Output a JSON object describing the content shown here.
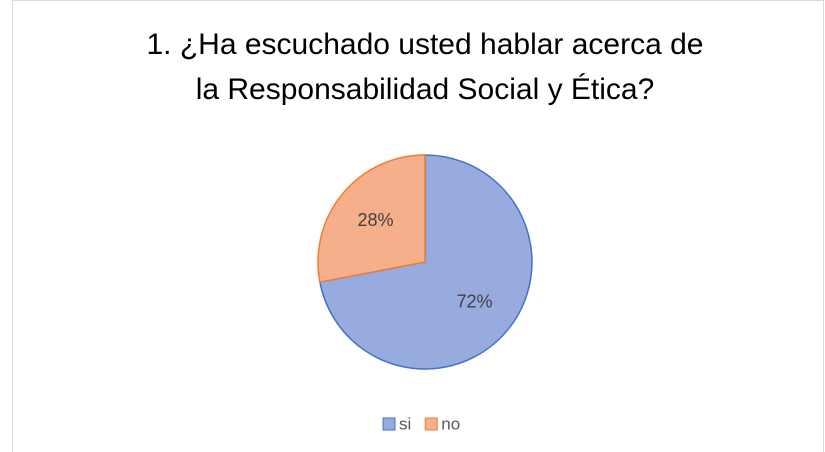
{
  "chart_data": {
    "type": "pie",
    "title": [
      "1. ¿Ha escuchado usted hablar acerca de",
      "la Responsabilidad Social y Ética?"
    ],
    "categories": [
      "si",
      "no"
    ],
    "values": [
      72,
      28
    ],
    "value_labels": [
      "72%",
      "28%"
    ],
    "colors": [
      "#97abdf",
      "#f5b08b"
    ],
    "edge_colors": [
      "#4472c4",
      "#ed7d31"
    ],
    "legend": "bottom"
  }
}
